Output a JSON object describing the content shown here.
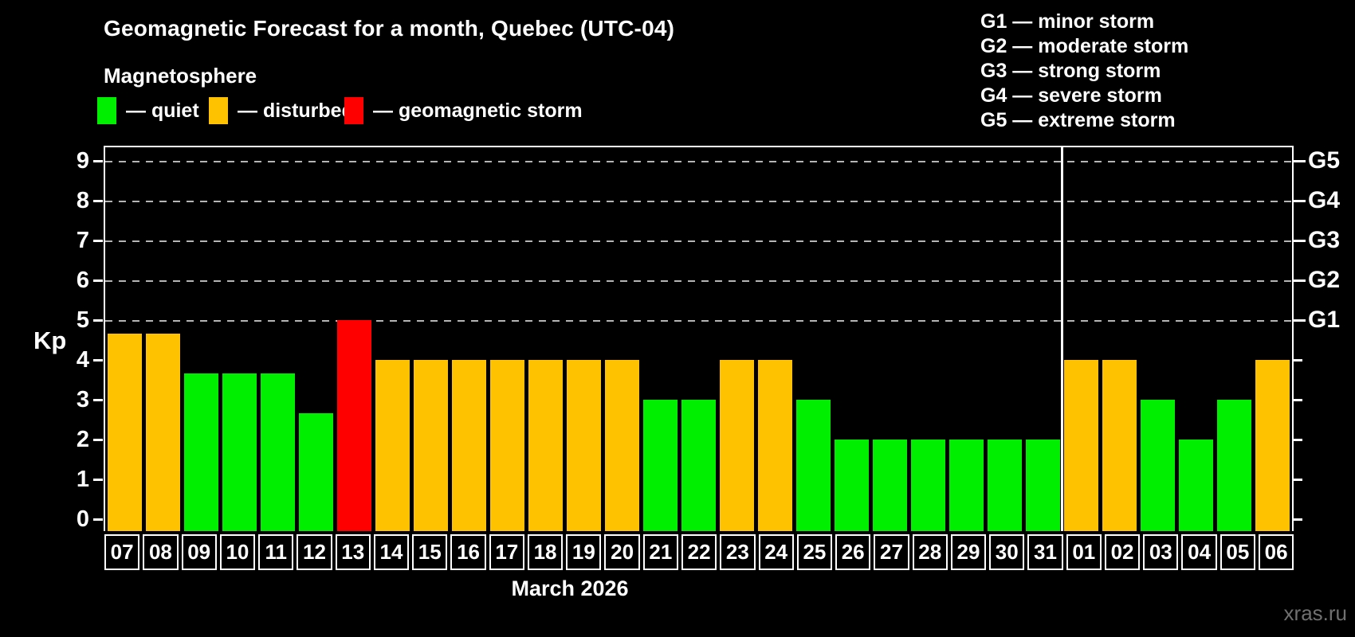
{
  "title": "Geomagnetic Forecast for a month, Quebec (UTC-04)",
  "subtitle": "Magnetosphere",
  "legend": {
    "items": [
      {
        "label": "— quiet",
        "status": "quiet"
      },
      {
        "label": "— disturbed",
        "status": "disturbed"
      },
      {
        "label": "— geomagnetic storm",
        "status": "storm"
      }
    ]
  },
  "g_legend": [
    "G1 — minor storm",
    "G2 — moderate storm",
    "G3 — strong storm",
    "G4 — severe storm",
    "G5 — extreme storm"
  ],
  "watermark": "xras.ru",
  "chart_data": {
    "type": "bar",
    "title": "Geomagnetic Forecast for a month, Quebec (UTC-04)",
    "ylabel": "Kp",
    "xlabel": "March 2026",
    "ylim": [
      0,
      9.4
    ],
    "yticks": [
      0,
      1,
      2,
      3,
      4,
      5,
      6,
      7,
      8,
      9
    ],
    "grid_levels": [
      5,
      6,
      7,
      8,
      9
    ],
    "grid_on": true,
    "right_axis_labels": [
      {
        "label": "G1",
        "kp": 5
      },
      {
        "label": "G2",
        "kp": 6
      },
      {
        "label": "G3",
        "kp": 7
      },
      {
        "label": "G4",
        "kp": 8
      },
      {
        "label": "G5",
        "kp": 9
      }
    ],
    "month_divider_after_index": 24,
    "categories": [
      "07",
      "08",
      "09",
      "10",
      "11",
      "12",
      "13",
      "14",
      "15",
      "16",
      "17",
      "18",
      "19",
      "20",
      "21",
      "22",
      "23",
      "24",
      "25",
      "26",
      "27",
      "28",
      "29",
      "30",
      "31",
      "01",
      "02",
      "03",
      "04",
      "05",
      "06"
    ],
    "values": [
      4.67,
      4.67,
      3.67,
      3.67,
      3.67,
      2.67,
      5.0,
      4.0,
      4.0,
      4.0,
      4.0,
      4.0,
      4.0,
      4.0,
      3.0,
      3.0,
      4.0,
      4.0,
      3.0,
      2.0,
      2.0,
      2.0,
      2.0,
      2.0,
      2.0,
      4.0,
      4.0,
      3.0,
      2.0,
      3.0,
      4.0
    ],
    "statuses": [
      "disturbed",
      "disturbed",
      "quiet",
      "quiet",
      "quiet",
      "quiet",
      "storm",
      "disturbed",
      "disturbed",
      "disturbed",
      "disturbed",
      "disturbed",
      "disturbed",
      "disturbed",
      "quiet",
      "quiet",
      "disturbed",
      "disturbed",
      "quiet",
      "quiet",
      "quiet",
      "quiet",
      "quiet",
      "quiet",
      "quiet",
      "disturbed",
      "disturbed",
      "quiet",
      "quiet",
      "quiet",
      "disturbed"
    ],
    "colors": {
      "quiet": "#00ee00",
      "disturbed": "#ffc200",
      "storm": "#ff0000"
    },
    "background": "#000000",
    "gridline_color": "#b5b5b5"
  }
}
